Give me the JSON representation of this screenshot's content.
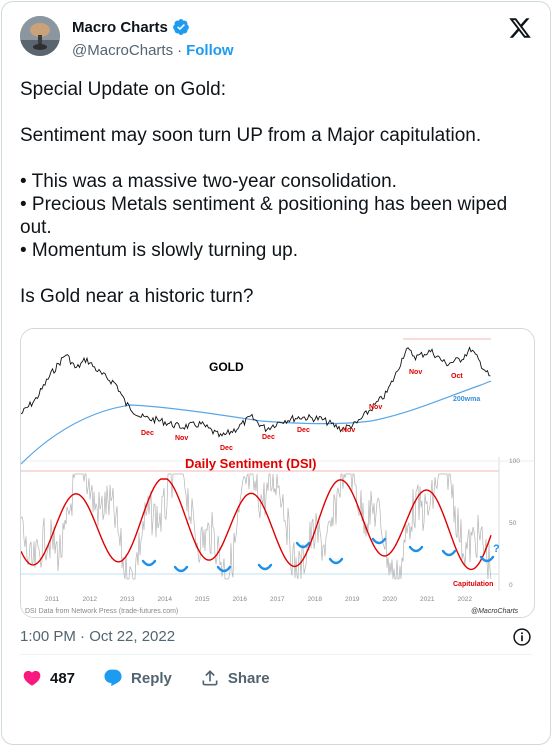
{
  "author": {
    "display_name": "Macro Charts",
    "handle": "@MacroCharts",
    "separator": "·",
    "follow_label": "Follow"
  },
  "tweet": {
    "text": "Special Update on Gold:\n\nSentiment may soon turn UP from a Major capitulation.\n\n• This was a massive two-year consolidation.\n• Precious Metals sentiment & positioning has been wiped out.\n• Momentum is slowly turning up.\n\nIs Gold near a historic turn?",
    "timestamp": "1:00 PM · Oct 22, 2022"
  },
  "actions": {
    "like_count": "487",
    "reply_label": "Reply",
    "share_label": "Share"
  },
  "media": {
    "top_title": "GOLD",
    "bottom_title": "Daily Sentiment (DSI)",
    "ma_label": "200wma",
    "capitulation_label": "Capitulation",
    "source_label": "DSI Data from Network Press (trade-futures.com)",
    "watermark": "@MacroCharts",
    "question_mark": "?",
    "month_labels": [
      "Dec",
      "Nov",
      "Dec",
      "Dec",
      "Dec",
      "Nov",
      "Nov",
      "Nov",
      "Oct"
    ],
    "x_years": [
      "2011",
      "2012",
      "2013",
      "2014",
      "2015",
      "2016",
      "2017",
      "2018",
      "2019",
      "2020",
      "2021",
      "2022"
    ],
    "y_ticks": [
      "100",
      "50",
      "0"
    ]
  },
  "colors": {
    "brand_blue": "#1d9bf0",
    "like_red": "#f91880",
    "muted": "#536471",
    "chart_red": "#e00000",
    "ma_blue": "#5aa6e6",
    "arc_blue": "#1e90e8"
  }
}
